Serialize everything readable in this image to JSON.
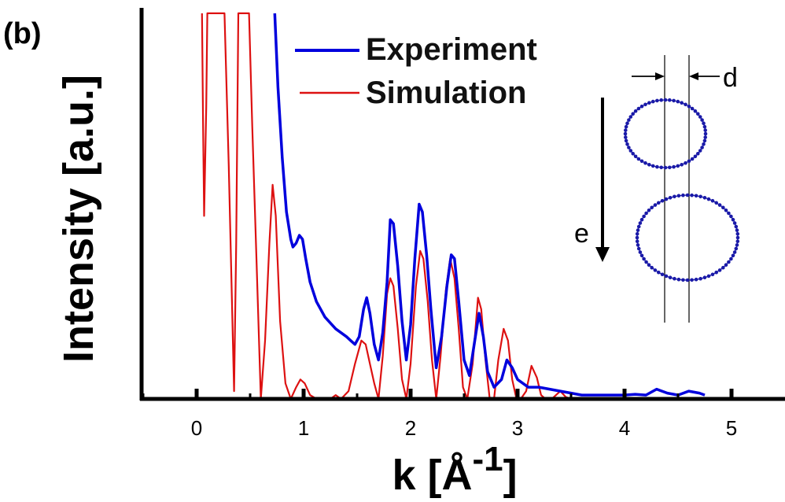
{
  "chart_data": {
    "type": "line",
    "panel_label": "(b)",
    "xlabel_base": "k [Å",
    "xlabel_sup": "-1",
    "xlabel_end": "]",
    "ylabel": "Intensity [a.u.]",
    "xlim": [
      -0.5,
      5.5
    ],
    "x_ticks": [
      "0",
      "1",
      "2",
      "3",
      "4",
      "5"
    ],
    "x_tick_values": [
      0,
      1,
      2,
      3,
      4,
      5
    ],
    "y_ticks_shown": false,
    "grid": false,
    "legend_position": "top-center",
    "series": [
      {
        "name": "Experiment",
        "color": "#0000dd",
        "points": [
          [
            0.73,
            0.99
          ],
          [
            0.76,
            0.8
          ],
          [
            0.8,
            0.62
          ],
          [
            0.84,
            0.48
          ],
          [
            0.88,
            0.41
          ],
          [
            0.9,
            0.39
          ],
          [
            0.93,
            0.4
          ],
          [
            0.96,
            0.42
          ],
          [
            0.99,
            0.41
          ],
          [
            1.02,
            0.36
          ],
          [
            1.06,
            0.3
          ],
          [
            1.12,
            0.25
          ],
          [
            1.2,
            0.21
          ],
          [
            1.3,
            0.18
          ],
          [
            1.4,
            0.16
          ],
          [
            1.44,
            0.15
          ],
          [
            1.48,
            0.14
          ],
          [
            1.52,
            0.16
          ],
          [
            1.56,
            0.23
          ],
          [
            1.59,
            0.26
          ],
          [
            1.62,
            0.22
          ],
          [
            1.66,
            0.14
          ],
          [
            1.7,
            0.1
          ],
          [
            1.74,
            0.17
          ],
          [
            1.78,
            0.3
          ],
          [
            1.81,
            0.46
          ],
          [
            1.84,
            0.45
          ],
          [
            1.88,
            0.34
          ],
          [
            1.92,
            0.2
          ],
          [
            1.96,
            0.1
          ],
          [
            2.0,
            0.19
          ],
          [
            2.04,
            0.36
          ],
          [
            2.08,
            0.5
          ],
          [
            2.11,
            0.48
          ],
          [
            2.15,
            0.37
          ],
          [
            2.19,
            0.23
          ],
          [
            2.24,
            0.08
          ],
          [
            2.29,
            0.16
          ],
          [
            2.34,
            0.29
          ],
          [
            2.38,
            0.37
          ],
          [
            2.41,
            0.36
          ],
          [
            2.45,
            0.25
          ],
          [
            2.5,
            0.1
          ],
          [
            2.55,
            0.06
          ],
          [
            2.6,
            0.15
          ],
          [
            2.64,
            0.22
          ],
          [
            2.68,
            0.16
          ],
          [
            2.72,
            0.07
          ],
          [
            2.78,
            0.03
          ],
          [
            2.85,
            0.05
          ],
          [
            2.9,
            0.1
          ],
          [
            2.95,
            0.08
          ],
          [
            3.0,
            0.05
          ],
          [
            3.1,
            0.03
          ],
          [
            3.2,
            0.03
          ],
          [
            3.4,
            0.02
          ],
          [
            3.6,
            0.01
          ],
          [
            3.8,
            0.01
          ],
          [
            4.0,
            0.01
          ],
          [
            4.1,
            0.012
          ],
          [
            4.2,
            0.01
          ],
          [
            4.3,
            0.025
          ],
          [
            4.4,
            0.015
          ],
          [
            4.5,
            0.01
          ],
          [
            4.6,
            0.02
          ],
          [
            4.7,
            0.015
          ],
          [
            4.75,
            0.01
          ]
        ]
      },
      {
        "name": "Simulation",
        "color": "#dd1111",
        "points": [
          [
            0.05,
            0.99
          ],
          [
            0.06,
            0.7
          ],
          [
            0.07,
            0.47
          ],
          [
            0.09,
            0.75
          ],
          [
            0.1,
            0.99
          ],
          [
            0.26,
            0.99
          ],
          [
            0.3,
            0.6
          ],
          [
            0.33,
            0.25
          ],
          [
            0.35,
            0.02
          ],
          [
            0.37,
            0.4
          ],
          [
            0.39,
            0.99
          ],
          [
            0.49,
            0.99
          ],
          [
            0.52,
            0.7
          ],
          [
            0.56,
            0.35
          ],
          [
            0.6,
            0.0
          ],
          [
            0.64,
            0.15
          ],
          [
            0.68,
            0.4
          ],
          [
            0.71,
            0.55
          ],
          [
            0.74,
            0.47
          ],
          [
            0.78,
            0.2
          ],
          [
            0.83,
            0.04
          ],
          [
            0.88,
            0.0
          ],
          [
            0.93,
            0.03
          ],
          [
            0.97,
            0.05
          ],
          [
            1.01,
            0.04
          ],
          [
            1.06,
            0.01
          ],
          [
            1.12,
            0.0
          ],
          [
            1.18,
            0.0
          ],
          [
            1.25,
            0.0
          ],
          [
            1.3,
            0.01
          ],
          [
            1.35,
            0.0
          ],
          [
            1.42,
            0.02
          ],
          [
            1.48,
            0.09
          ],
          [
            1.54,
            0.15
          ],
          [
            1.58,
            0.14
          ],
          [
            1.62,
            0.09
          ],
          [
            1.66,
            0.04
          ],
          [
            1.7,
            0.0
          ],
          [
            1.74,
            0.11
          ],
          [
            1.78,
            0.27
          ],
          [
            1.81,
            0.31
          ],
          [
            1.84,
            0.29
          ],
          [
            1.88,
            0.18
          ],
          [
            1.92,
            0.05
          ],
          [
            1.96,
            0.0
          ],
          [
            2.0,
            0.09
          ],
          [
            2.05,
            0.29
          ],
          [
            2.09,
            0.38
          ],
          [
            2.12,
            0.36
          ],
          [
            2.16,
            0.25
          ],
          [
            2.2,
            0.1
          ],
          [
            2.24,
            0.0
          ],
          [
            2.28,
            0.11
          ],
          [
            2.33,
            0.28
          ],
          [
            2.37,
            0.36
          ],
          [
            2.41,
            0.31
          ],
          [
            2.45,
            0.18
          ],
          [
            2.49,
            0.03
          ],
          [
            2.53,
            0.0
          ],
          [
            2.58,
            0.09
          ],
          [
            2.63,
            0.26
          ],
          [
            2.66,
            0.23
          ],
          [
            2.7,
            0.1
          ],
          [
            2.74,
            0.0
          ],
          [
            2.78,
            0.0
          ],
          [
            2.82,
            0.1
          ],
          [
            2.87,
            0.18
          ],
          [
            2.91,
            0.15
          ],
          [
            2.95,
            0.05
          ],
          [
            2.99,
            0.0
          ],
          [
            3.03,
            0.0
          ],
          [
            3.08,
            0.02
          ],
          [
            3.13,
            0.085
          ],
          [
            3.18,
            0.055
          ],
          [
            3.22,
            0.01
          ],
          [
            3.26,
            0.0
          ],
          [
            3.32,
            0.0
          ],
          [
            3.4,
            0.02
          ],
          [
            3.45,
            0.005
          ],
          [
            3.5,
            0.0
          ],
          [
            3.6,
            0.0
          ],
          [
            3.7,
            0.0
          ],
          [
            3.8,
            0.0
          ],
          [
            3.9,
            0.0
          ],
          [
            4.0,
            0.0
          ],
          [
            4.2,
            0.0
          ],
          [
            4.4,
            0.0
          ],
          [
            4.6,
            0.0
          ]
        ]
      }
    ],
    "inset": {
      "direction_label": "e",
      "separation_label": "d",
      "color": "#1a1aa8"
    }
  }
}
